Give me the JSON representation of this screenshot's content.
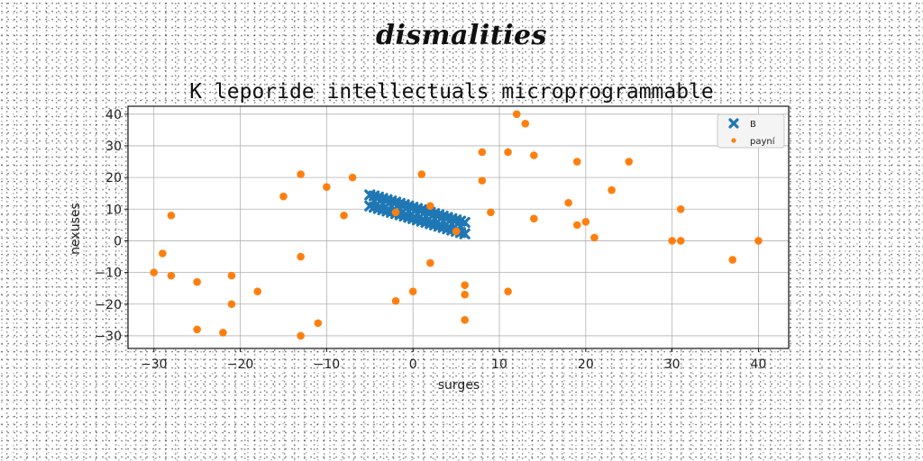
{
  "banner": "dismalities",
  "chart_data": {
    "type": "scatter",
    "title": "K leporide intellectuals microprogrammable",
    "xlabel": "surges",
    "ylabel": "nexuses",
    "xlim": [
      -33,
      43.5
    ],
    "ylim": [
      -34,
      42.5
    ],
    "xticks": [
      -30,
      -20,
      -10,
      0,
      10,
      20,
      30,
      40
    ],
    "yticks": [
      -30,
      -20,
      -10,
      0,
      10,
      20,
      30,
      40
    ],
    "grid": true,
    "legend_position": "top-right",
    "series": [
      {
        "name": "B",
        "marker": "x",
        "color": "#1f77b4",
        "x": [
          -5,
          -4.5,
          -4,
          -3.5,
          -3,
          -2.5,
          -2,
          -1.5,
          -1,
          -0.5,
          0,
          0.5,
          1,
          1.5,
          2,
          2.5,
          3,
          3.5,
          4,
          4.5,
          5,
          5.5,
          6,
          -5,
          -4.5,
          -4,
          -3.5,
          -3,
          -2.5,
          -2,
          -1.5,
          -1,
          -0.5,
          0,
          0.5,
          1,
          1.5,
          2,
          2.5,
          3,
          3.5,
          4,
          4.5,
          5,
          5.5,
          6,
          -4.5,
          -3.5,
          -2.5,
          -1.5,
          -0.5,
          0.5,
          1.5,
          2.5,
          3.5,
          4.5,
          5.5
        ],
        "y": [
          14.5,
          14.2,
          13.8,
          13.4,
          13.0,
          12.6,
          12.2,
          11.8,
          11.4,
          11.0,
          10.6,
          10.2,
          9.8,
          9.4,
          9.0,
          8.6,
          8.2,
          7.8,
          7.4,
          7.0,
          6.6,
          6.2,
          5.8,
          11.0,
          10.6,
          10.2,
          9.8,
          9.4,
          9.0,
          8.6,
          8.2,
          7.8,
          7.4,
          7.0,
          6.6,
          6.2,
          5.8,
          5.4,
          5.0,
          4.6,
          4.2,
          3.8,
          3.4,
          3.0,
          2.6,
          2.2,
          12.6,
          11.8,
          11.0,
          10.2,
          9.4,
          8.6,
          7.8,
          7.0,
          6.2,
          5.4,
          4.6
        ]
      },
      {
        "name": "payní",
        "marker": "o",
        "color": "#ff7f0e",
        "x": [
          12,
          13,
          14,
          19,
          25,
          8,
          11,
          1,
          -13,
          -7,
          8,
          -10,
          -15,
          23,
          18,
          2,
          -28,
          -2,
          9,
          -8,
          14,
          20,
          19,
          31,
          21,
          5,
          30,
          31,
          40,
          -29,
          -13,
          37,
          -30,
          -28,
          -21,
          2,
          -25,
          -18,
          6,
          0,
          11,
          6,
          -2,
          -21,
          -11,
          6,
          -25,
          -22,
          -13
        ],
        "y": [
          40,
          37,
          27,
          25,
          25,
          28,
          28,
          21,
          21,
          20,
          19,
          17,
          14,
          16,
          12,
          11,
          8,
          9,
          9,
          8,
          7,
          6,
          5,
          10,
          1,
          3,
          0,
          0,
          0,
          -4,
          -5,
          -6,
          -10,
          -11,
          -11,
          -7,
          -13,
          -16,
          -14,
          -16,
          -16,
          -17,
          -19,
          -20,
          -26,
          -25,
          -28,
          -29,
          -30
        ]
      }
    ]
  }
}
